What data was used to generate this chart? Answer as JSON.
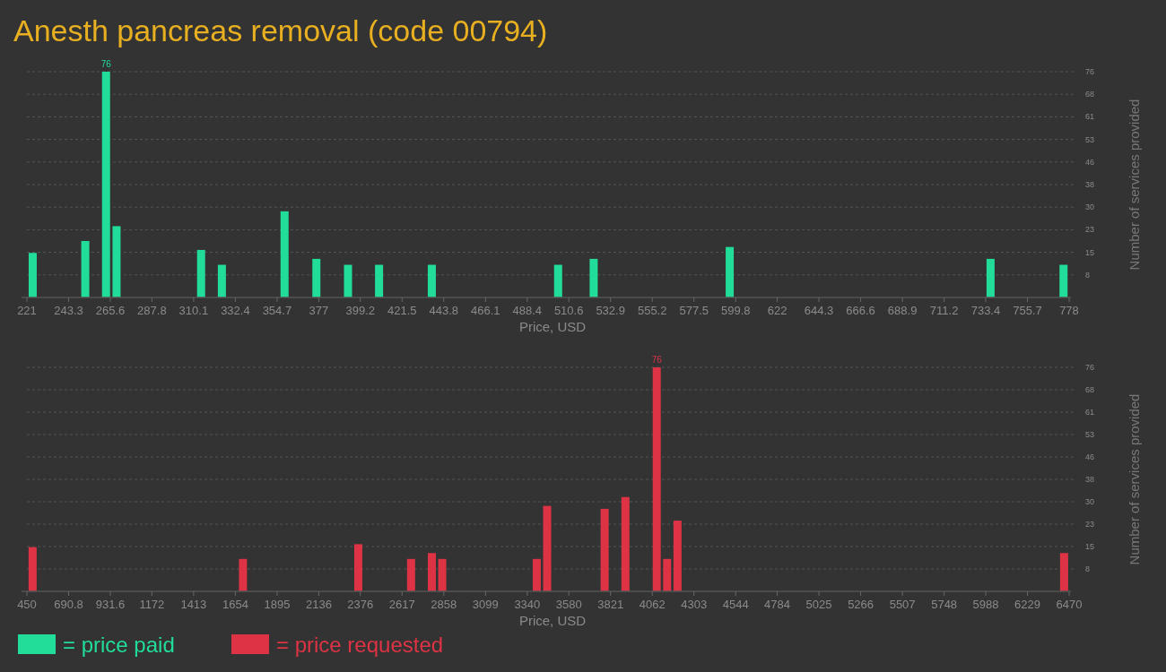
{
  "chart_data": [
    {
      "type": "bar",
      "title": "Anesth pancreas removal (code 00794)",
      "xlabel": "Price, USD",
      "ylabel": "Number of services provided",
      "series": [
        {
          "name": "= price paid",
          "color": "#22dd99",
          "x": [
            224.1,
            252.2,
            263.3,
            268.9,
            314.1,
            325.2,
            358.7,
            375.7,
            392.6,
            409.2,
            437.4,
            504.9,
            523.9,
            596.6,
            736,
            775
          ],
          "values": [
            15,
            19,
            76,
            24,
            16,
            11,
            29,
            13,
            11,
            11,
            11,
            11,
            13,
            17,
            13,
            11
          ],
          "value_labels": [
            null,
            null,
            "76",
            null,
            null,
            null,
            null,
            null,
            null,
            null,
            null,
            null,
            null,
            null,
            null,
            null
          ]
        }
      ],
      "xlim": [
        221,
        778
      ],
      "xticks": [
        221,
        243.3,
        265.6,
        287.8,
        310.1,
        332.4,
        354.7,
        377,
        399.2,
        421.5,
        443.8,
        466.1,
        488.4,
        510.6,
        532.9,
        555.2,
        577.5,
        599.8,
        622,
        644.3,
        666.6,
        688.9,
        711.2,
        733.4,
        755.7,
        778
      ],
      "ylim": [
        0,
        76
      ],
      "yticks": [
        {
          "value": 7.6,
          "label": "8"
        },
        {
          "value": 15.2,
          "label": "15"
        },
        {
          "value": 22.8,
          "label": "23"
        },
        {
          "value": 30.4,
          "label": "30"
        },
        {
          "value": 38,
          "label": "38"
        },
        {
          "value": 45.6,
          "label": "46"
        },
        {
          "value": 53.2,
          "label": "53"
        },
        {
          "value": 60.8,
          "label": "61"
        },
        {
          "value": 68.4,
          "label": "68"
        },
        {
          "value": 76,
          "label": "76"
        }
      ],
      "grid": "y",
      "legend": "bottom left"
    },
    {
      "type": "bar",
      "xlabel": "Price, USD",
      "ylabel": "Number of services provided",
      "series": [
        {
          "name": "= price requested",
          "color": "#dd3344",
          "x": [
            483,
            1698,
            2364,
            2669,
            2789,
            2849,
            3395,
            3455,
            3787,
            3907,
            4088,
            4148,
            4208,
            6441
          ],
          "values": [
            15,
            11,
            16,
            11,
            13,
            11,
            11,
            29,
            28,
            32,
            76,
            11,
            24,
            13
          ],
          "value_labels": [
            null,
            null,
            null,
            null,
            null,
            null,
            null,
            null,
            null,
            null,
            "76",
            null,
            null,
            null
          ]
        }
      ],
      "xlim": [
        450,
        6470
      ],
      "xticks": [
        450,
        690.8,
        931.6,
        1172,
        1413,
        1654,
        1895,
        2136,
        2376,
        2617,
        2858,
        3099,
        3340,
        3580,
        3821,
        4062,
        4303,
        4544,
        4784,
        5025,
        5266,
        5507,
        5748,
        5988,
        6229,
        6470
      ],
      "ylim": [
        0,
        76
      ],
      "yticks": [
        {
          "value": 7.6,
          "label": "8"
        },
        {
          "value": 15.2,
          "label": "15"
        },
        {
          "value": 22.8,
          "label": "23"
        },
        {
          "value": 30.4,
          "label": "30"
        },
        {
          "value": 38,
          "label": "38"
        },
        {
          "value": 45.6,
          "label": "46"
        },
        {
          "value": 53.2,
          "label": "53"
        },
        {
          "value": 60.8,
          "label": "61"
        },
        {
          "value": 68.4,
          "label": "68"
        },
        {
          "value": 76,
          "label": "76"
        }
      ],
      "grid": "y",
      "legend": "bottom left"
    }
  ]
}
